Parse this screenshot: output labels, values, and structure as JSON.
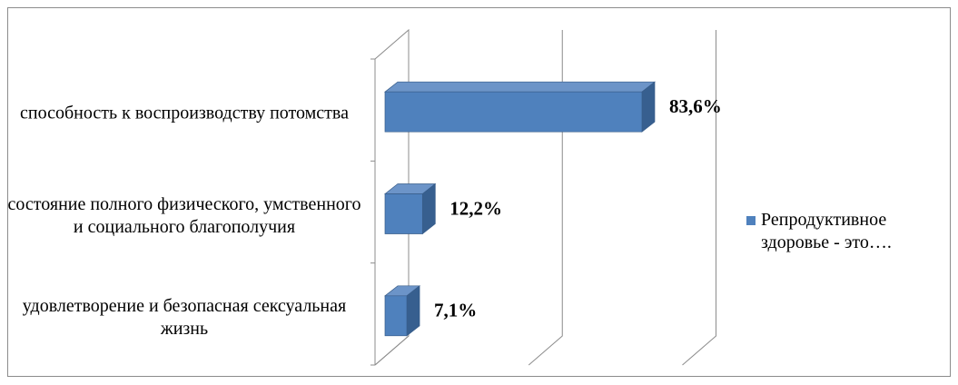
{
  "chart_data": {
    "type": "bar3d_horizontal",
    "categories": [
      "способность к воспроизводству потомства",
      "состояние полного физического, умственного и социального благополучия",
      "удовлетворение и безопасная сексуальная жизнь"
    ],
    "series": [
      {
        "name": "Репродуктивное здоровье - это….",
        "color": "#4f81bd",
        "values": [
          83.6,
          12.2,
          7.1
        ],
        "value_labels": [
          "83,6%",
          "12,2%",
          "7,1%"
        ]
      }
    ],
    "xlim": [
      0,
      100
    ],
    "xticks": [
      0,
      50,
      100
    ],
    "grid": true,
    "legend": "right"
  }
}
